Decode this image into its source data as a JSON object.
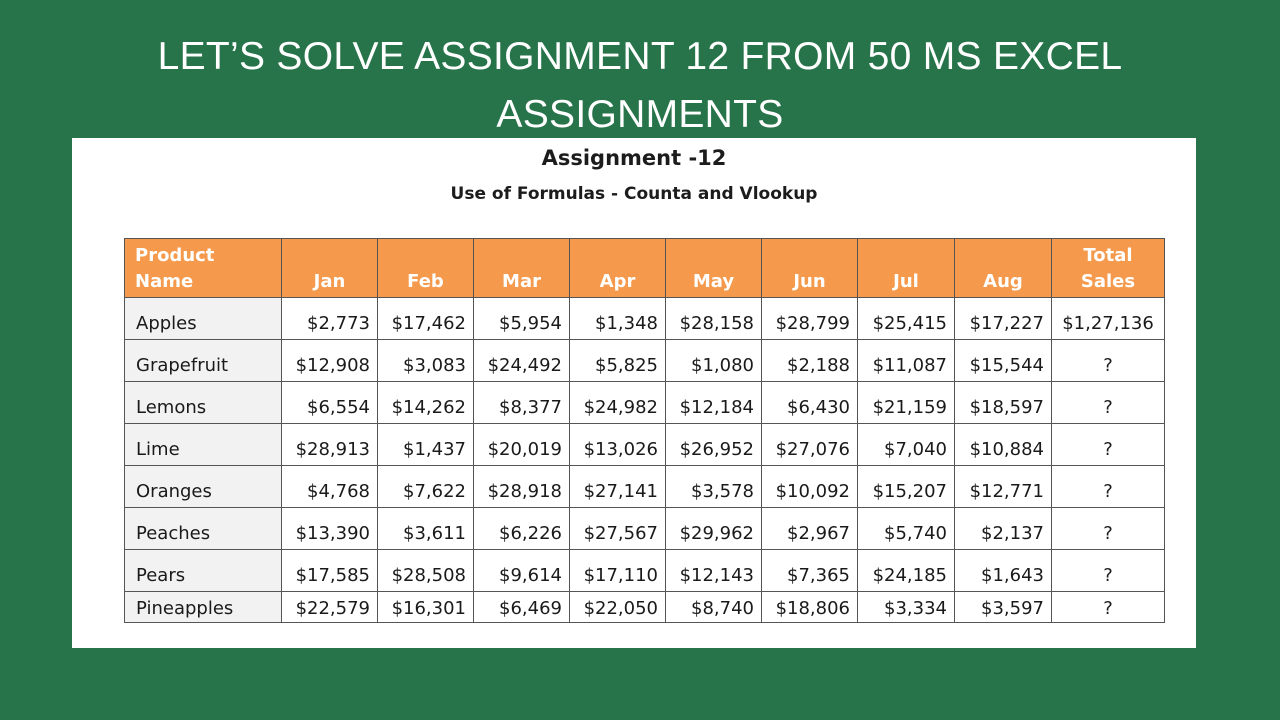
{
  "banner": {
    "line1": "LET’S SOLVE ASSIGNMENT 12 FROM 50 MS EXCEL",
    "line2": "ASSIGNMENTS"
  },
  "sheet": {
    "title": "Assignment -12",
    "subtitle": "Use of Formulas -  Counta and Vlookup"
  },
  "table": {
    "headers": [
      "Product Name",
      "Jan",
      "Feb",
      "Mar",
      "Apr",
      "May",
      "Jun",
      "Jul",
      "Aug",
      "Total Sales"
    ],
    "rows": [
      [
        "Apples",
        "$2,773",
        "$17,462",
        "$5,954",
        "$1,348",
        "$28,158",
        "$28,799",
        "$25,415",
        "$17,227",
        "$1,27,136"
      ],
      [
        "Grapefruit",
        "$12,908",
        "$3,083",
        "$24,492",
        "$5,825",
        "$1,080",
        "$2,188",
        "$11,087",
        "$15,544",
        "?"
      ],
      [
        "Lemons",
        "$6,554",
        "$14,262",
        "$8,377",
        "$24,982",
        "$12,184",
        "$6,430",
        "$21,159",
        "$18,597",
        "?"
      ],
      [
        "Lime",
        "$28,913",
        "$1,437",
        "$20,019",
        "$13,026",
        "$26,952",
        "$27,076",
        "$7,040",
        "$10,884",
        "?"
      ],
      [
        "Oranges",
        "$4,768",
        "$7,622",
        "$28,918",
        "$27,141",
        "$3,578",
        "$10,092",
        "$15,207",
        "$12,771",
        "?"
      ],
      [
        "Peaches",
        "$13,390",
        "$3,611",
        "$6,226",
        "$27,567",
        "$29,962",
        "$2,967",
        "$5,740",
        "$2,137",
        "?"
      ],
      [
        "Pears",
        "$17,585",
        "$28,508",
        "$9,614",
        "$17,110",
        "$12,143",
        "$7,365",
        "$24,185",
        "$1,643",
        "?"
      ],
      [
        "Pineapples",
        "$22,579",
        "$16,301",
        "$6,469",
        "$22,050",
        "$8,740",
        "$18,806",
        "$3,334",
        "$3,597",
        "?"
      ]
    ]
  },
  "colors": {
    "background": "#27734a",
    "header_fill": "#f59a4d",
    "header_text": "#ffffff",
    "name_column_fill": "#f2f2f2"
  }
}
